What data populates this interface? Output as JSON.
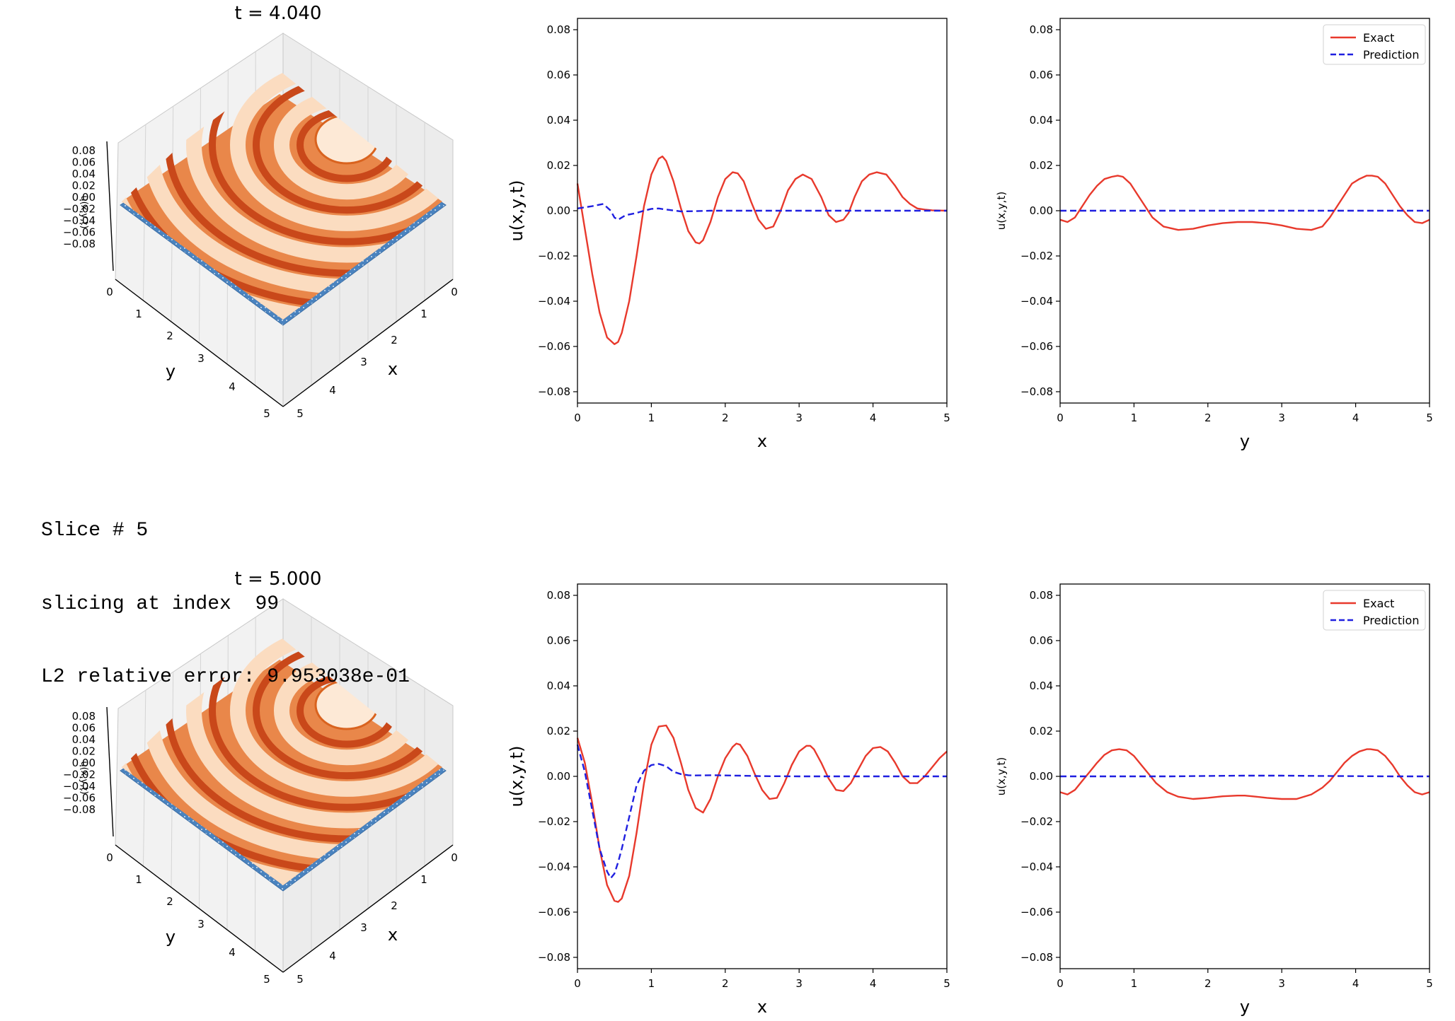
{
  "colors": {
    "exact": "#e8392c",
    "prediction": "#1f1fe0",
    "surface_light": "#fde6cf",
    "surface_dark": "#d9531b",
    "surface_base": "#4a83bf",
    "pane": "#f2f2f2"
  },
  "console_lines": [
    "Slice # 5",
    "slicing at index  99",
    "L2 relative error: 9.953038e-01"
  ],
  "rows": [
    {
      "surface": {
        "title": "t = 4.040",
        "xlabel": "x",
        "ylabel": "y",
        "zlabel": "u(x,y,t)",
        "xticks": [
          "0",
          "1",
          "2",
          "3",
          "4",
          "5"
        ],
        "yticks": [
          "0",
          "1",
          "2",
          "3",
          "4",
          "5"
        ],
        "zticks": [
          "0.08",
          "0.06",
          "0.04",
          "0.02",
          "0.00",
          "−0.02",
          "−0.04",
          "−0.06",
          "−0.08"
        ]
      },
      "line_x": {
        "xlabel": "x",
        "ylabel": "u(x,y,t)"
      },
      "line_y": {
        "xlabel": "y",
        "ylabel": "u(x,y,t)"
      }
    },
    {
      "surface": {
        "title": "t = 5.000",
        "xlabel": "x",
        "ylabel": "y",
        "zlabel": "u(x,y,t)",
        "xticks": [
          "0",
          "1",
          "2",
          "3",
          "4",
          "5"
        ],
        "yticks": [
          "0",
          "1",
          "2",
          "3",
          "4",
          "5"
        ],
        "zticks": [
          "0.08",
          "0.06",
          "0.04",
          "0.02",
          "0.00",
          "−0.02",
          "−0.04",
          "−0.06",
          "−0.08"
        ]
      },
      "line_x": {
        "xlabel": "x",
        "ylabel": "u(x,y,t)"
      },
      "line_y": {
        "xlabel": "y",
        "ylabel": "u(x,y,t)"
      }
    }
  ],
  "chart_data": [
    {
      "type": "line",
      "panel": "row1-x-slice",
      "xlabel": "x",
      "ylabel": "u(x,y,t)",
      "xlim": [
        0,
        5
      ],
      "ylim": [
        -0.085,
        0.085
      ],
      "xticks": [
        0,
        1,
        2,
        3,
        4,
        5
      ],
      "yticks": [
        -0.08,
        -0.06,
        -0.04,
        -0.02,
        0.0,
        0.02,
        0.04,
        0.06,
        0.08
      ],
      "grid": false,
      "series": [
        {
          "style": "solid-red",
          "x": [
            0,
            0.1,
            0.2,
            0.3,
            0.4,
            0.5,
            0.55,
            0.6,
            0.7,
            0.8,
            0.9,
            1.0,
            1.1,
            1.15,
            1.2,
            1.3,
            1.4,
            1.5,
            1.6,
            1.65,
            1.7,
            1.8,
            1.9,
            2.0,
            2.1,
            2.17,
            2.25,
            2.35,
            2.45,
            2.55,
            2.65,
            2.75,
            2.85,
            2.95,
            3.05,
            3.17,
            3.3,
            3.4,
            3.5,
            3.6,
            3.67,
            3.75,
            3.85,
            3.95,
            4.05,
            4.18,
            4.3,
            4.4,
            4.5,
            4.6,
            4.7,
            4.8,
            4.9,
            5.0
          ],
          "y": [
            0.012,
            -0.008,
            -0.028,
            -0.045,
            -0.056,
            -0.059,
            -0.058,
            -0.054,
            -0.04,
            -0.02,
            0.002,
            0.016,
            0.023,
            0.024,
            0.022,
            0.013,
            0.001,
            -0.009,
            -0.014,
            -0.0145,
            -0.013,
            -0.005,
            0.006,
            0.014,
            0.017,
            0.0165,
            0.013,
            0.004,
            -0.004,
            -0.008,
            -0.007,
            0.0,
            0.009,
            0.014,
            0.016,
            0.014,
            0.006,
            -0.002,
            -0.005,
            -0.004,
            -0.001,
            0.006,
            0.013,
            0.016,
            0.017,
            0.016,
            0.011,
            0.006,
            0.003,
            0.001,
            0.0005,
            0.0002,
            0.0001,
            0.0
          ]
        },
        {
          "style": "dashed-blue",
          "x": [
            0,
            0.2,
            0.35,
            0.45,
            0.5,
            0.55,
            0.65,
            0.8,
            0.9,
            1.0,
            1.1,
            1.2,
            1.4,
            1.6,
            1.8,
            2.0,
            2.5,
            3.0,
            3.5,
            4.0,
            4.5,
            5.0
          ],
          "y": [
            0.001,
            0.002,
            0.003,
            0.0,
            -0.003,
            -0.004,
            -0.002,
            -0.001,
            0.0,
            0.0008,
            0.001,
            0.0005,
            -0.0003,
            -0.0002,
            0.0,
            0.0,
            0.0,
            0.0,
            0.0,
            0.0,
            0.0,
            0.0
          ]
        }
      ]
    },
    {
      "type": "line",
      "panel": "row1-y-slice",
      "xlabel": "y",
      "ylabel": "u(x,y,t)",
      "xlim": [
        0,
        5
      ],
      "ylim": [
        -0.085,
        0.085
      ],
      "xticks": [
        0,
        1,
        2,
        3,
        4,
        5
      ],
      "yticks": [
        -0.08,
        -0.06,
        -0.04,
        -0.02,
        0.0,
        0.02,
        0.04,
        0.06,
        0.08
      ],
      "grid": false,
      "legend": {
        "position": "top-right",
        "entries": [
          "Exact",
          "Prediction"
        ]
      },
      "series": [
        {
          "name": "Exact",
          "style": "solid-red",
          "x": [
            0,
            0.1,
            0.2,
            0.3,
            0.4,
            0.5,
            0.6,
            0.7,
            0.78,
            0.85,
            0.95,
            1.05,
            1.15,
            1.25,
            1.4,
            1.6,
            1.8,
            2.0,
            2.2,
            2.4,
            2.5,
            2.6,
            2.8,
            3.0,
            3.2,
            3.4,
            3.55,
            3.65,
            3.75,
            3.85,
            3.95,
            4.05,
            4.15,
            4.22,
            4.3,
            4.4,
            4.5,
            4.6,
            4.7,
            4.8,
            4.9,
            5.0
          ],
          "y": [
            -0.004,
            -0.005,
            -0.003,
            0.002,
            0.007,
            0.011,
            0.014,
            0.015,
            0.0155,
            0.015,
            0.012,
            0.007,
            0.002,
            -0.003,
            -0.007,
            -0.0085,
            -0.008,
            -0.0065,
            -0.0055,
            -0.005,
            -0.005,
            -0.005,
            -0.0055,
            -0.0065,
            -0.008,
            -0.0085,
            -0.007,
            -0.003,
            0.002,
            0.007,
            0.012,
            0.014,
            0.0155,
            0.0155,
            0.015,
            0.012,
            0.007,
            0.002,
            -0.002,
            -0.005,
            -0.0055,
            -0.004
          ]
        },
        {
          "name": "Prediction",
          "style": "dashed-blue",
          "x": [
            0,
            1,
            2,
            3,
            4,
            5
          ],
          "y": [
            0.0,
            0.0,
            0.0,
            0.0,
            0.0,
            0.0
          ]
        }
      ]
    },
    {
      "type": "line",
      "panel": "row2-x-slice",
      "xlabel": "x",
      "ylabel": "u(x,y,t)",
      "xlim": [
        0,
        5
      ],
      "ylim": [
        -0.085,
        0.085
      ],
      "xticks": [
        0,
        1,
        2,
        3,
        4,
        5
      ],
      "yticks": [
        -0.08,
        -0.06,
        -0.04,
        -0.02,
        0.0,
        0.02,
        0.04,
        0.06,
        0.08
      ],
      "grid": false,
      "series": [
        {
          "style": "solid-red",
          "x": [
            0,
            0.1,
            0.2,
            0.3,
            0.4,
            0.5,
            0.55,
            0.6,
            0.7,
            0.8,
            0.9,
            1.0,
            1.1,
            1.2,
            1.3,
            1.4,
            1.5,
            1.6,
            1.7,
            1.8,
            1.9,
            2.0,
            2.1,
            2.15,
            2.2,
            2.3,
            2.4,
            2.5,
            2.6,
            2.7,
            2.8,
            2.9,
            3.0,
            3.1,
            3.15,
            3.2,
            3.3,
            3.4,
            3.5,
            3.6,
            3.7,
            3.8,
            3.9,
            4.0,
            4.1,
            4.2,
            4.3,
            4.4,
            4.5,
            4.6,
            4.7,
            4.8,
            4.9,
            5.0
          ],
          "y": [
            0.017,
            0.006,
            -0.012,
            -0.032,
            -0.048,
            -0.055,
            -0.0555,
            -0.054,
            -0.044,
            -0.025,
            -0.003,
            0.014,
            0.022,
            0.0225,
            0.017,
            0.006,
            -0.006,
            -0.014,
            -0.016,
            -0.01,
            0.0,
            0.008,
            0.013,
            0.0145,
            0.014,
            0.009,
            0.001,
            -0.006,
            -0.01,
            -0.0095,
            -0.003,
            0.005,
            0.011,
            0.0135,
            0.0135,
            0.012,
            0.006,
            -0.001,
            -0.006,
            -0.0065,
            -0.003,
            0.003,
            0.009,
            0.0125,
            0.013,
            0.011,
            0.006,
            0.0,
            -0.003,
            -0.003,
            0.0,
            0.004,
            0.008,
            0.011
          ]
        },
        {
          "style": "dashed-blue",
          "x": [
            0,
            0.1,
            0.2,
            0.3,
            0.4,
            0.45,
            0.5,
            0.55,
            0.6,
            0.7,
            0.8,
            0.9,
            1.0,
            1.1,
            1.2,
            1.3,
            1.4,
            1.5,
            1.6,
            1.8,
            2.0,
            2.2,
            2.5,
            3.0,
            3.5,
            4.0,
            4.5,
            5.0
          ],
          "y": [
            0.014,
            0.002,
            -0.015,
            -0.032,
            -0.042,
            -0.045,
            -0.043,
            -0.038,
            -0.032,
            -0.018,
            -0.004,
            0.0025,
            0.005,
            0.0055,
            0.0045,
            0.002,
            0.001,
            0.0005,
            0.0004,
            0.0005,
            0.0004,
            0.0003,
            0.0001,
            0.0,
            0.0,
            0.0,
            0.0,
            0.0
          ]
        }
      ]
    },
    {
      "type": "line",
      "panel": "row2-y-slice",
      "xlabel": "y",
      "ylabel": "u(x,y,t)",
      "xlim": [
        0,
        5
      ],
      "ylim": [
        -0.085,
        0.085
      ],
      "xticks": [
        0,
        1,
        2,
        3,
        4,
        5
      ],
      "yticks": [
        -0.08,
        -0.06,
        -0.04,
        -0.02,
        0.0,
        0.02,
        0.04,
        0.06,
        0.08
      ],
      "grid": false,
      "legend": {
        "position": "top-right",
        "entries": [
          "Exact",
          "Prediction"
        ]
      },
      "series": [
        {
          "name": "Exact",
          "style": "solid-red",
          "x": [
            0,
            0.1,
            0.2,
            0.3,
            0.4,
            0.5,
            0.6,
            0.7,
            0.8,
            0.9,
            1.0,
            1.1,
            1.2,
            1.3,
            1.45,
            1.6,
            1.8,
            2.0,
            2.2,
            2.4,
            2.5,
            2.6,
            2.8,
            3.0,
            3.2,
            3.4,
            3.55,
            3.65,
            3.75,
            3.85,
            3.95,
            4.05,
            4.15,
            4.2,
            4.3,
            4.4,
            4.5,
            4.6,
            4.7,
            4.8,
            4.9,
            5.0
          ],
          "y": [
            -0.007,
            -0.008,
            -0.006,
            -0.002,
            0.002,
            0.006,
            0.0095,
            0.0115,
            0.012,
            0.0115,
            0.009,
            0.005,
            0.001,
            -0.003,
            -0.007,
            -0.009,
            -0.01,
            -0.0095,
            -0.0088,
            -0.0085,
            -0.0085,
            -0.0088,
            -0.0095,
            -0.01,
            -0.01,
            -0.008,
            -0.005,
            -0.002,
            0.002,
            0.006,
            0.009,
            0.011,
            0.012,
            0.012,
            0.0115,
            0.009,
            0.005,
            0.0,
            -0.004,
            -0.007,
            -0.008,
            -0.007
          ]
        },
        {
          "name": "Prediction",
          "style": "dashed-blue",
          "x": [
            0,
            0.5,
            1.0,
            1.5,
            2.0,
            2.5,
            3.0,
            3.5,
            4.0,
            4.5,
            5.0
          ],
          "y": [
            0.0,
            0.0,
            0.0,
            0.0,
            0.0002,
            0.0003,
            0.0003,
            0.0002,
            0.0001,
            0.0,
            0.0
          ]
        }
      ]
    }
  ]
}
